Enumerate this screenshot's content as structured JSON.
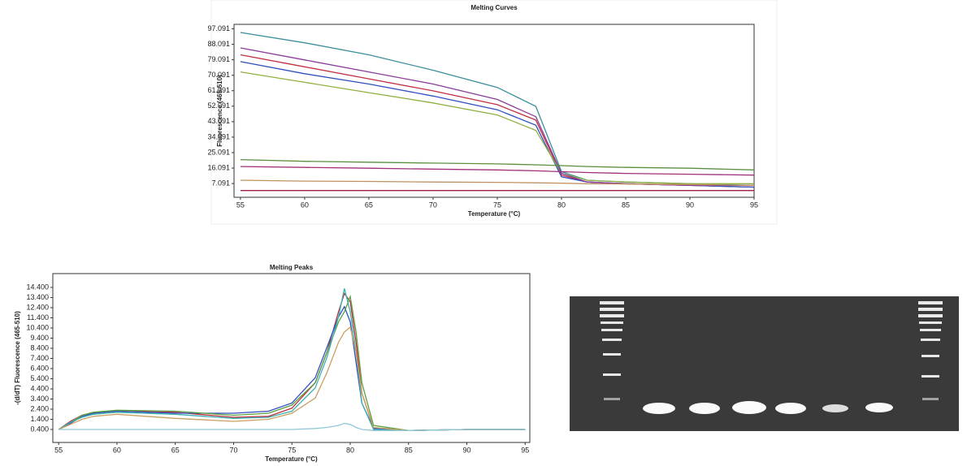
{
  "chart_data": [
    {
      "type": "line",
      "title": "Melting Curves",
      "x_label": "Temperature (°C)",
      "y_label": "Fluorescence (465-510)",
      "x": [
        55,
        60,
        65,
        70,
        75,
        78,
        80,
        82,
        85,
        90,
        95
      ],
      "xlim": [
        54.5,
        95
      ],
      "xticks": [
        55,
        60,
        65,
        70,
        75,
        80,
        85,
        90,
        95
      ],
      "ylim": [
        -0.9,
        99.7
      ],
      "yticks": [
        7.091,
        16.091,
        25.091,
        34.091,
        43.091,
        52.091,
        61.091,
        70.091,
        79.091,
        88.091,
        97.091
      ],
      "series": [
        {
          "color": "#3a8f9a",
          "values": [
            95,
            89,
            82,
            73,
            63,
            52,
            14,
            9,
            8,
            7,
            6
          ]
        },
        {
          "color": "#c03040",
          "values": [
            82,
            75,
            68,
            61,
            53,
            44,
            12,
            8,
            7,
            6,
            5
          ]
        },
        {
          "color": "#3050c0",
          "values": [
            78,
            71,
            65,
            58,
            50,
            41,
            11,
            8,
            7,
            6,
            5
          ]
        },
        {
          "color": "#8fb040",
          "values": [
            72,
            66,
            60,
            54,
            47,
            38,
            13,
            9,
            8,
            7,
            7
          ]
        },
        {
          "color": "#8a3c9a",
          "values": [
            86,
            79,
            72,
            65,
            56,
            46,
            13,
            8,
            7,
            6,
            6
          ]
        },
        {
          "color": "#5a8f40",
          "values": [
            21,
            20,
            19.5,
            19,
            18.5,
            18,
            17.5,
            17,
            16.5,
            16,
            15
          ]
        },
        {
          "color": "#a0307a",
          "values": [
            17,
            16.5,
            16,
            15.5,
            15,
            14.5,
            14,
            13.5,
            13,
            12.5,
            12
          ]
        },
        {
          "color": "#c09060",
          "values": [
            9,
            8.5,
            8.3,
            8,
            7.8,
            7.5,
            7.3,
            7,
            6.8,
            6.5,
            6
          ]
        },
        {
          "color": "#a02040",
          "values": [
            3,
            3,
            3,
            3,
            3,
            3,
            3,
            3,
            3,
            3,
            3
          ]
        }
      ]
    },
    {
      "type": "line",
      "title": "Melting Peaks",
      "x_label": "Temperature (°C)",
      "y_label": "-(d/dT) Fluorescence (465-510)",
      "x": [
        55,
        56,
        57,
        58,
        60,
        65,
        70,
        73,
        75,
        77,
        78,
        79,
        79.5,
        80,
        80.5,
        81,
        82,
        85,
        90,
        95
      ],
      "xlim": [
        54.5,
        95.4
      ],
      "xticks": [
        55,
        60,
        65,
        70,
        75,
        80,
        85,
        90,
        95
      ],
      "ylim": [
        -0.88,
        15.76
      ],
      "yticks": [
        {
          "value": 0.4,
          "label": "0.400"
        },
        {
          "value": 1.4,
          "label": "1.400"
        },
        {
          "value": 2.4,
          "label": "2.400"
        },
        {
          "value": 3.4,
          "label": "3.400"
        },
        {
          "value": 4.4,
          "label": "4.400"
        },
        {
          "value": 5.4,
          "label": "5.400"
        },
        {
          "value": 6.4,
          "label": "6.400"
        },
        {
          "value": 7.4,
          "label": "7.400"
        },
        {
          "value": 8.4,
          "label": "8.400"
        },
        {
          "value": 9.4,
          "label": "9.400"
        },
        {
          "value": 10.4,
          "label": "10.400"
        },
        {
          "value": 11.4,
          "label": "11.400"
        },
        {
          "value": 12.4,
          "label": "12.400"
        },
        {
          "value": 13.4,
          "label": "13.400"
        },
        {
          "value": 14.4,
          "label": "14.400"
        }
      ],
      "series": [
        {
          "color": "#c03040",
          "values": [
            0.4,
            1.2,
            1.8,
            2.1,
            2.2,
            2.1,
            1.6,
            1.7,
            2.5,
            5,
            8,
            12,
            13.8,
            13,
            9,
            4,
            0.5,
            0.3,
            0.4,
            0.4
          ]
        },
        {
          "color": "#3050c0",
          "values": [
            0.4,
            1.0,
            1.7,
            2.0,
            2.2,
            2.0,
            2.0,
            2.2,
            3,
            5.5,
            8.5,
            11.5,
            12.5,
            11,
            7,
            3,
            0.5,
            0.3,
            0.4,
            0.4
          ]
        },
        {
          "color": "#5a9f40",
          "values": [
            0.4,
            1.1,
            1.8,
            2.1,
            2.3,
            2.2,
            1.8,
            2,
            2.8,
            5,
            8,
            11,
            12,
            13.5,
            10,
            5,
            0.8,
            0.3,
            0.4,
            0.4
          ]
        },
        {
          "color": "#3ab0b0",
          "values": [
            0.4,
            1.1,
            1.6,
            1.9,
            2.1,
            1.9,
            1.5,
            1.6,
            2.2,
            4.5,
            7.5,
            11.5,
            14.3,
            12,
            8,
            3,
            0.4,
            0.3,
            0.4,
            0.4
          ]
        },
        {
          "color": "#c8a060",
          "values": [
            0.4,
            0.9,
            1.4,
            1.7,
            1.9,
            1.5,
            1.2,
            1.4,
            2,
            3.5,
            6,
            9,
            10,
            10.5,
            8,
            4,
            0.6,
            0.3,
            0.4,
            0.4
          ]
        },
        {
          "color": "#90c8d8",
          "values": [
            0.4,
            0.4,
            0.4,
            0.4,
            0.4,
            0.4,
            0.4,
            0.4,
            0.4,
            0.5,
            0.6,
            0.8,
            1.0,
            0.9,
            0.6,
            0.4,
            0.3,
            0.3,
            0.4,
            0.4
          ]
        }
      ]
    }
  ]
}
